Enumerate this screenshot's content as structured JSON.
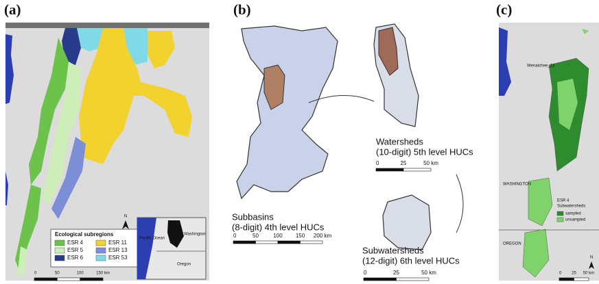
{
  "panel_a": {
    "label": "(a)",
    "legend": {
      "title": "Ecological subregions",
      "items": [
        {
          "label": "ESR 4",
          "color": "#6cc24a"
        },
        {
          "label": "ESR 5",
          "color": "#cdeeb8"
        },
        {
          "label": "ESR 6",
          "color": "#2b3b8c"
        },
        {
          "label": "ESR 11",
          "color": "#f2d22e"
        },
        {
          "label": "ESR 13",
          "color": "#7c8fd6"
        },
        {
          "label": "ESR 53",
          "color": "#7fd9e6"
        }
      ]
    },
    "inset": {
      "ocean": "Pacific Ocean",
      "state_1": "Washington",
      "state_2": "Oregon"
    },
    "north": "N",
    "scale": [
      "0",
      "50",
      "100",
      "150 km"
    ]
  },
  "panel_b": {
    "label": "(b)",
    "subbasins": {
      "title": "Subbasins",
      "subtitle": "(8-digit) 4th level HUCs",
      "scale": [
        "0",
        "50",
        "100",
        "150",
        "200 km"
      ]
    },
    "watersheds": {
      "title": "Watersheds",
      "subtitle": "(10-digit) 5th level HUCs",
      "scale": [
        "0",
        "25",
        "50 km"
      ]
    },
    "subwatersheds": {
      "title": "Subwatersheds",
      "subtitle": "(12-digit) 6th level HUCs",
      "scale": [
        "0",
        "25",
        "50 km"
      ]
    }
  },
  "panel_c": {
    "label": "(c)",
    "focus": "Wenatchee_13",
    "state_1": "WASHINGTON",
    "state_2": "OREGON",
    "legend": {
      "title_1": "ESR 4",
      "title_2": "Subwatersheds",
      "items": [
        {
          "label": "sampled",
          "color": "#2e8b2e"
        },
        {
          "label": "unsampled",
          "color": "#7fd36a"
        }
      ]
    },
    "north": "N",
    "scale": [
      "0",
      "25",
      "50 km"
    ]
  }
}
